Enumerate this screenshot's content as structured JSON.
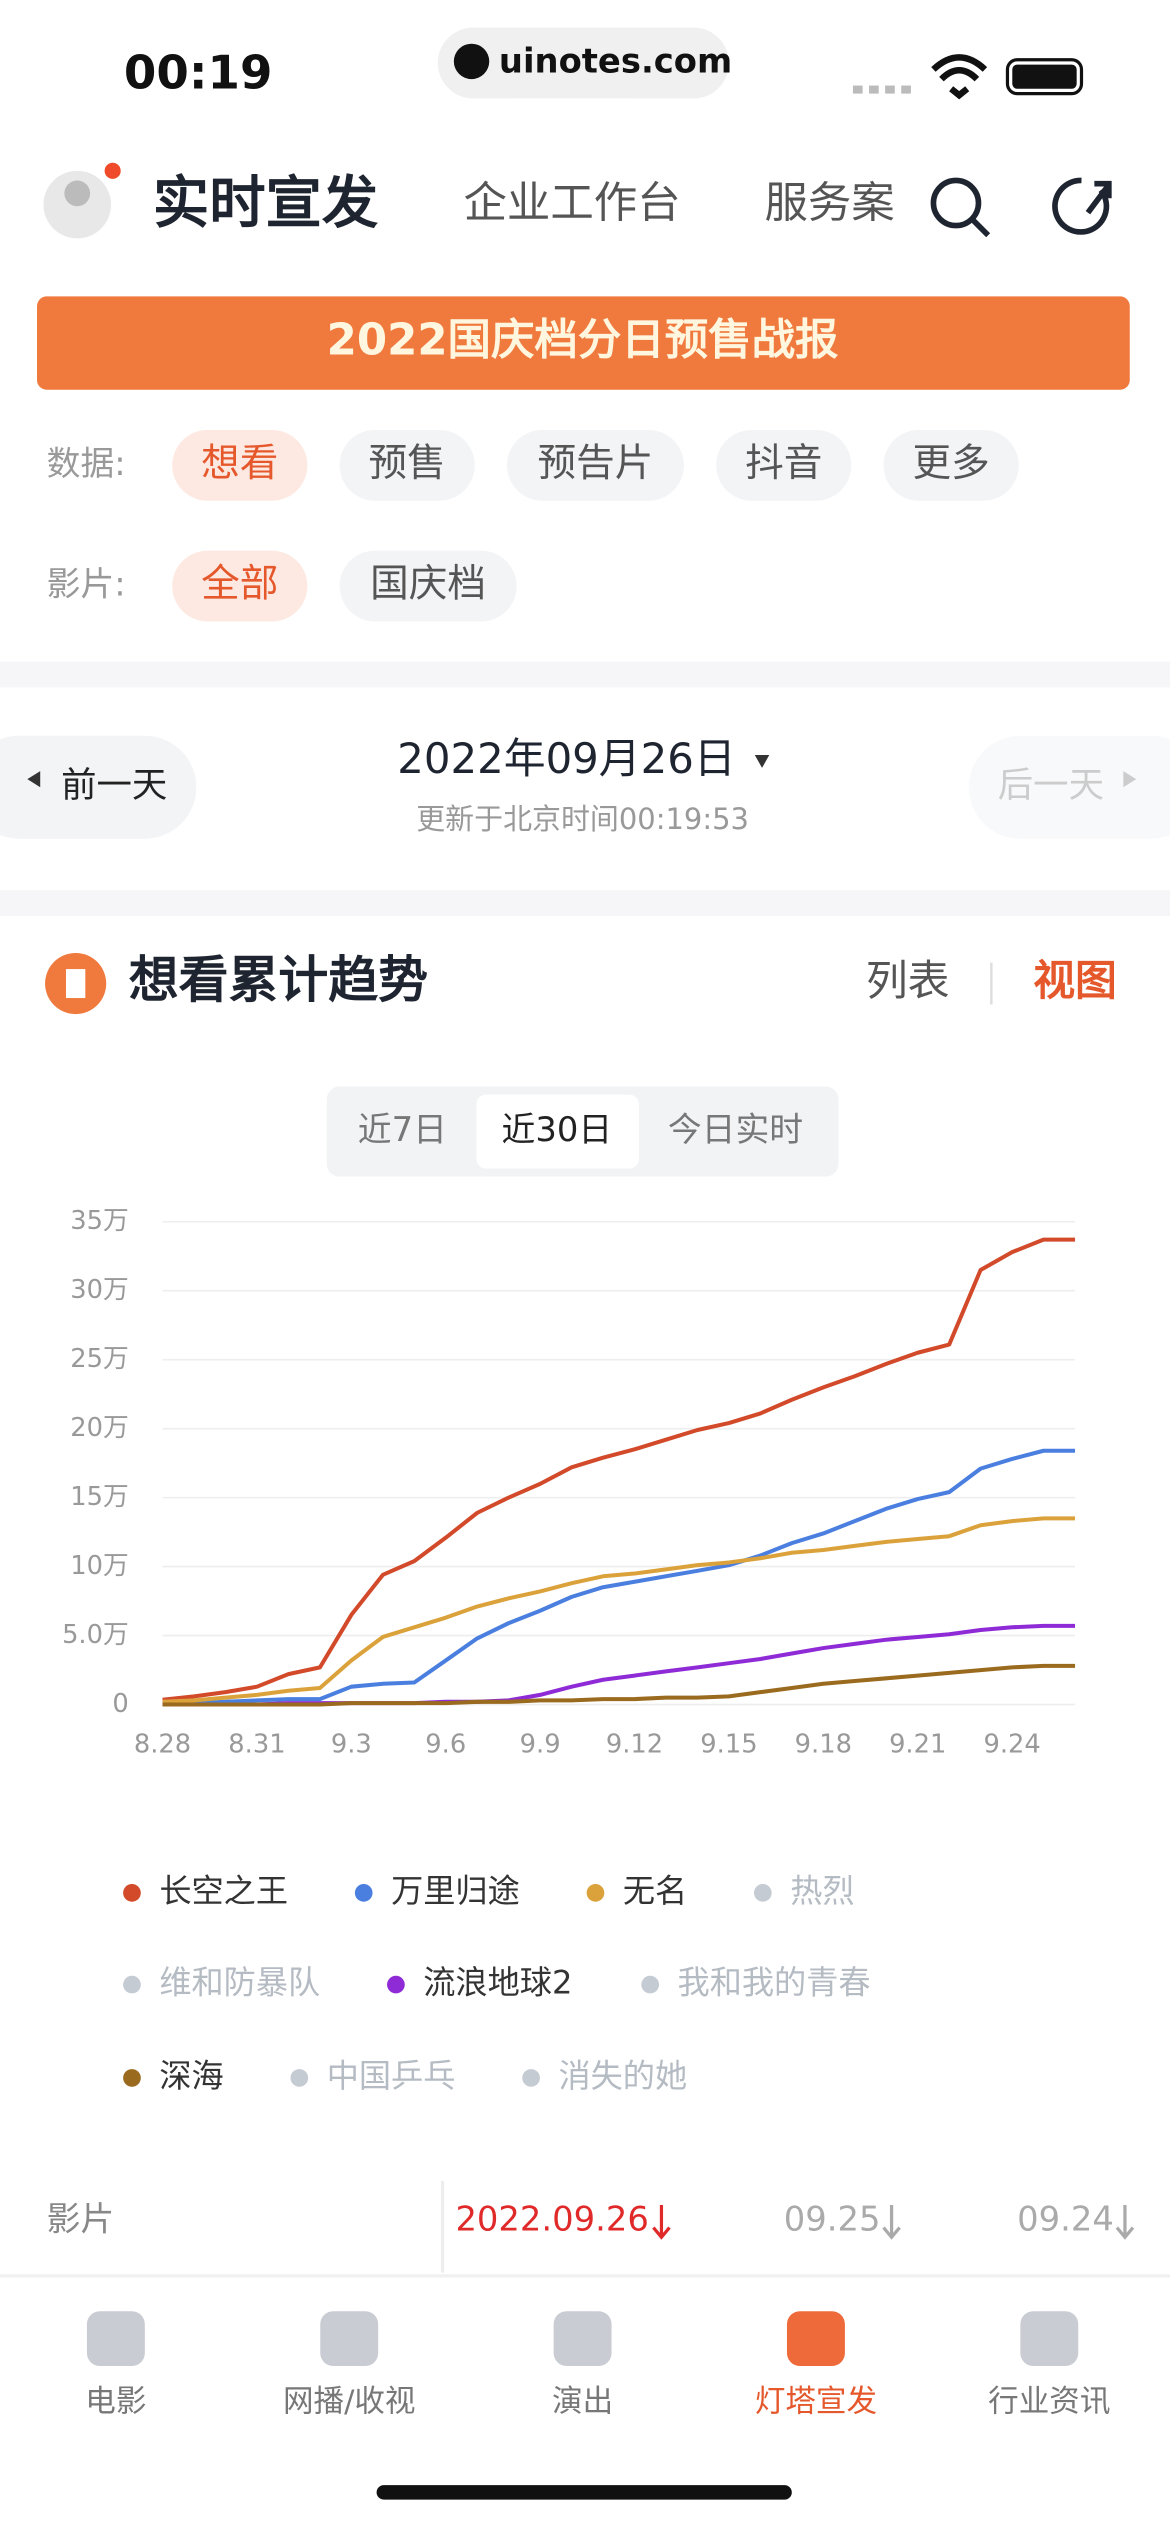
{
  "status": {
    "time": "00:19",
    "url": "uinotes.com"
  },
  "header": {
    "title": "实时宣发",
    "tabs": [
      "企业工作台",
      "服务案"
    ]
  },
  "banner": "2022国庆档分日预售战报",
  "filters": [
    {
      "label": "数据:",
      "options": [
        "想看",
        "预售",
        "预告片",
        "抖音",
        "更多"
      ],
      "active": 0
    },
    {
      "label": "影片:",
      "options": [
        "全部",
        "国庆档"
      ],
      "active": 0
    }
  ],
  "date_nav": {
    "prev": "前一天",
    "date": "2022年09月26日",
    "updated": "更新于北京时间00:19:53",
    "next": "后一天"
  },
  "section": {
    "title": "想看累计趋势",
    "views": [
      "列表",
      "视图"
    ],
    "active_view": 1
  },
  "ranges": {
    "options": [
      "近7日",
      "近30日",
      "今日实时"
    ],
    "active": 1
  },
  "chart_data": {
    "type": "line",
    "categories": [
      "8.28",
      null,
      null,
      "8.31",
      null,
      null,
      "9.3",
      null,
      null,
      "9.6",
      null,
      null,
      "9.9",
      null,
      null,
      "9.12",
      null,
      null,
      "9.15",
      null,
      null,
      "9.18",
      null,
      null,
      "9.21",
      null,
      null,
      "9.24",
      null,
      null
    ],
    "ylim": [
      0,
      35
    ],
    "yticks": [
      0,
      {
        "value": 5,
        "label": "5.0万"
      },
      {
        "value": 10,
        "label": "10万"
      },
      {
        "value": 15,
        "label": "15万"
      },
      {
        "value": 20,
        "label": "20万"
      },
      {
        "value": 25,
        "label": "25万"
      },
      {
        "value": 30,
        "label": "30万"
      },
      {
        "value": 35,
        "label": "35万"
      }
    ],
    "grid": true,
    "series": [
      {
        "name": "长空之王",
        "color": "#d24a2a",
        "visible": true,
        "values": [
          0.35,
          0.6,
          0.9,
          1.3,
          2.2,
          2.7,
          6.5,
          9.4,
          10.4,
          12.1,
          13.9,
          15.0,
          16.0,
          17.2,
          17.9,
          18.5,
          19.2,
          19.9,
          20.4,
          21.1,
          22.1,
          23.0,
          23.8,
          24.7,
          25.5,
          26.1,
          31.5,
          32.8,
          33.7,
          33.7
        ]
      },
      {
        "name": "万里归途",
        "color": "#4a7fe0",
        "visible": true,
        "values": [
          0.1,
          0.1,
          0.2,
          0.3,
          0.4,
          0.4,
          1.3,
          1.5,
          1.6,
          3.2,
          4.8,
          5.9,
          6.8,
          7.8,
          8.5,
          8.9,
          9.3,
          9.7,
          10.1,
          10.8,
          11.7,
          12.4,
          13.3,
          14.2,
          14.9,
          15.4,
          17.1,
          17.8,
          18.4,
          18.4
        ]
      },
      {
        "name": "无名",
        "color": "#dba23c",
        "visible": true,
        "values": [
          0.2,
          0.3,
          0.5,
          0.7,
          1.0,
          1.2,
          3.2,
          4.9,
          5.6,
          6.3,
          7.1,
          7.7,
          8.2,
          8.8,
          9.3,
          9.5,
          9.8,
          10.1,
          10.3,
          10.6,
          11.0,
          11.2,
          11.5,
          11.8,
          12.0,
          12.2,
          13.0,
          13.3,
          13.5,
          13.5
        ]
      },
      {
        "name": "热烈",
        "color": "#c5cbd3",
        "visible": false
      },
      {
        "name": "维和防暴队",
        "color": "#c5cbd3",
        "visible": false
      },
      {
        "name": "流浪地球2",
        "color": "#8e2bd6",
        "visible": true,
        "values": [
          0,
          0,
          0,
          0,
          0.1,
          0.1,
          0.1,
          0.1,
          0.1,
          0.2,
          0.2,
          0.3,
          0.7,
          1.3,
          1.8,
          2.1,
          2.4,
          2.7,
          3.0,
          3.3,
          3.7,
          4.1,
          4.4,
          4.7,
          4.9,
          5.1,
          5.4,
          5.6,
          5.7,
          5.7
        ]
      },
      {
        "name": "我和我的青春",
        "color": "#c5cbd3",
        "visible": false
      },
      {
        "name": "深海",
        "color": "#9a6a1e",
        "visible": true,
        "values": [
          0,
          0,
          0,
          0,
          0,
          0,
          0.1,
          0.1,
          0.1,
          0.1,
          0.2,
          0.2,
          0.3,
          0.3,
          0.4,
          0.4,
          0.5,
          0.5,
          0.6,
          0.9,
          1.2,
          1.5,
          1.7,
          1.9,
          2.1,
          2.3,
          2.5,
          2.7,
          2.8,
          2.8
        ]
      },
      {
        "name": "中国乒乓",
        "color": "#c5cbd3",
        "visible": false
      },
      {
        "name": "消失的她",
        "color": "#c5cbd3",
        "visible": false
      }
    ]
  },
  "table_header": {
    "label": "影片",
    "columns": [
      "2022.09.26",
      "09.25",
      "09.24"
    ]
  },
  "nav": {
    "items": [
      "电影",
      "网播/收视",
      "演出",
      "灯塔宣发",
      "行业资讯"
    ],
    "active": 3
  }
}
